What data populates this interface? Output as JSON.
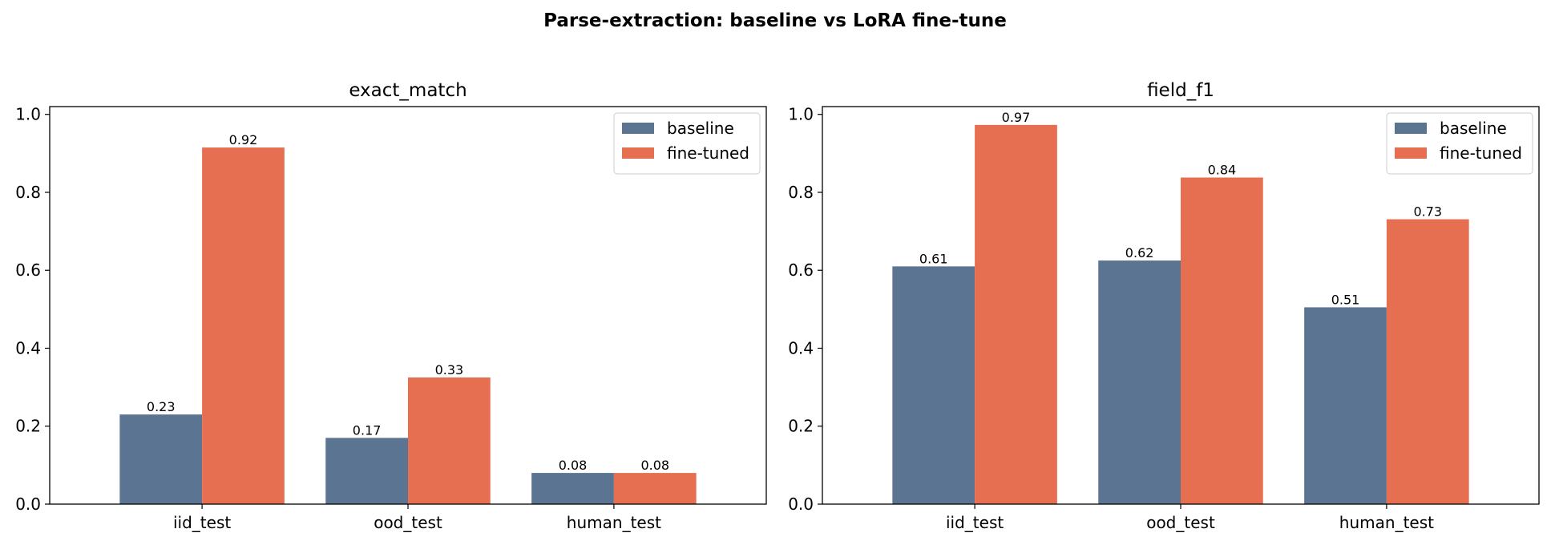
{
  "title": "Parse-extraction: baseline vs LoRA fine-tune",
  "colors": {
    "baseline": "#5a7491",
    "fine_tuned": "#e76f51"
  },
  "chart_data": [
    {
      "type": "bar",
      "title": "exact_match",
      "categories": [
        "iid_test",
        "ood_test",
        "human_test"
      ],
      "series": [
        {
          "name": "baseline",
          "values": [
            0.23,
            0.17,
            0.08
          ],
          "labels": [
            "0.23",
            "0.17",
            "0.08"
          ]
        },
        {
          "name": "fine-tuned",
          "values": [
            0.915,
            0.325,
            0.08
          ],
          "labels": [
            "0.92",
            "0.33",
            "0.08"
          ]
        }
      ],
      "xlabel": "",
      "ylabel": "",
      "ylim": [
        0,
        1.02
      ],
      "yticks": [
        0.0,
        0.2,
        0.4,
        0.6,
        0.8,
        1.0
      ],
      "ytick_labels": [
        "0.0",
        "0.2",
        "0.4",
        "0.6",
        "0.8",
        "1.0"
      ],
      "legend": "top-right",
      "grid": false
    },
    {
      "type": "bar",
      "title": "field_f1",
      "categories": [
        "iid_test",
        "ood_test",
        "human_test"
      ],
      "series": [
        {
          "name": "baseline",
          "values": [
            0.61,
            0.625,
            0.505
          ],
          "labels": [
            "0.61",
            "0.62",
            "0.51"
          ]
        },
        {
          "name": "fine-tuned",
          "values": [
            0.973,
            0.838,
            0.731
          ],
          "labels": [
            "0.97",
            "0.84",
            "0.73"
          ]
        }
      ],
      "xlabel": "",
      "ylabel": "",
      "ylim": [
        0,
        1.02
      ],
      "yticks": [
        0.0,
        0.2,
        0.4,
        0.6,
        0.8,
        1.0
      ],
      "ytick_labels": [
        "0.0",
        "0.2",
        "0.4",
        "0.6",
        "0.8",
        "1.0"
      ],
      "legend": "top-right",
      "grid": false
    }
  ]
}
